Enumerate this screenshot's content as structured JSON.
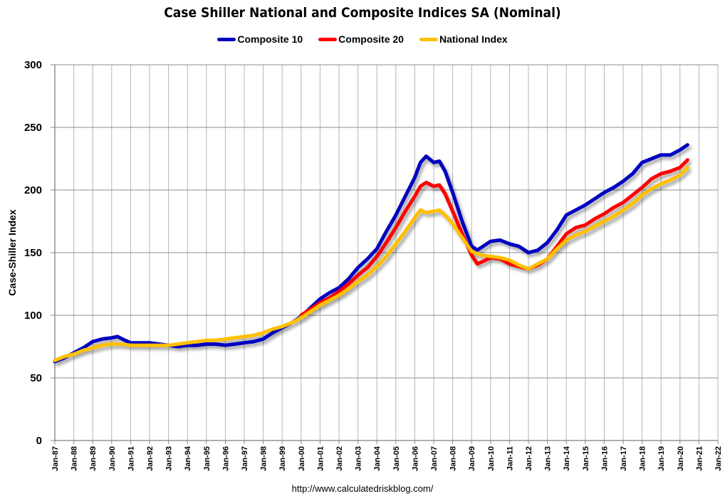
{
  "chart_data": {
    "type": "line",
    "title": "Case Shiller National and Composite Indices SA (Nominal)",
    "xlabel": "",
    "ylabel": "Case-Shiller Index",
    "ylim": [
      0,
      300
    ],
    "yticks": [
      0,
      50,
      100,
      150,
      200,
      250,
      300
    ],
    "xlim": [
      1987,
      2022
    ],
    "xtick_labels": [
      "Jan-87",
      "Jan-88",
      "Jan-89",
      "Jan-90",
      "Jan-91",
      "Jan-92",
      "Jan-93",
      "Jan-94",
      "Jan-95",
      "Jan-96",
      "Jan-97",
      "Jan-98",
      "Jan-99",
      "Jan-00",
      "Jan-01",
      "Jan-02",
      "Jan-03",
      "Jan-04",
      "Jan-05",
      "Jan-06",
      "Jan-07",
      "Jan-08",
      "Jan-09",
      "Jan-10",
      "Jan-11",
      "Jan-12",
      "Jan-13",
      "Jan-14",
      "Jan-15",
      "Jan-16",
      "Jan-17",
      "Jan-18",
      "Jan-19",
      "Jan-20",
      "Jan-21",
      "Jan-22"
    ],
    "grid": true,
    "legend_position": "top-center",
    "series": [
      {
        "name": "Composite 10",
        "color": "#0000C0",
        "x": [
          1987.0,
          1987.5,
          1988.0,
          1988.5,
          1989.0,
          1989.5,
          1990.0,
          1990.3,
          1990.7,
          1991.0,
          1991.5,
          1992.0,
          1992.5,
          1993.0,
          1993.5,
          1994.0,
          1994.5,
          1995.0,
          1995.5,
          1996.0,
          1996.5,
          1997.0,
          1997.5,
          1998.0,
          1998.5,
          1999.0,
          1999.5,
          2000.0,
          2000.5,
          2001.0,
          2001.5,
          2002.0,
          2002.5,
          2003.0,
          2003.5,
          2004.0,
          2004.5,
          2005.0,
          2005.5,
          2006.0,
          2006.3,
          2006.6,
          2007.0,
          2007.3,
          2007.6,
          2008.0,
          2008.5,
          2009.0,
          2009.3,
          2009.6,
          2010.0,
          2010.5,
          2011.0,
          2011.5,
          2012.0,
          2012.5,
          2013.0,
          2013.5,
          2014.0,
          2014.5,
          2015.0,
          2015.5,
          2016.0,
          2016.5,
          2017.0,
          2017.5,
          2018.0,
          2018.5,
          2019.0,
          2019.5,
          2020.0,
          2020.4
        ],
        "values": [
          63,
          66,
          70,
          74,
          79,
          81,
          82,
          83,
          80,
          78,
          78,
          78,
          77,
          76,
          75,
          76,
          76,
          77,
          77,
          76,
          77,
          78,
          79,
          81,
          86,
          90,
          94,
          99,
          106,
          113,
          118,
          122,
          129,
          138,
          145,
          153,
          167,
          180,
          195,
          210,
          222,
          227,
          222,
          223,
          215,
          198,
          175,
          155,
          152,
          155,
          159,
          160,
          157,
          155,
          150,
          152,
          158,
          168,
          180,
          184,
          188,
          193,
          198,
          202,
          207,
          213,
          222,
          225,
          228,
          228,
          232,
          236
        ]
      },
      {
        "name": "Composite 20",
        "color": "#FF0000",
        "x": [
          2000.0,
          2000.5,
          2001.0,
          2001.5,
          2002.0,
          2002.5,
          2003.0,
          2003.5,
          2004.0,
          2004.5,
          2005.0,
          2005.5,
          2006.0,
          2006.3,
          2006.6,
          2007.0,
          2007.3,
          2007.6,
          2008.0,
          2008.5,
          2009.0,
          2009.3,
          2009.6,
          2010.0,
          2010.5,
          2011.0,
          2011.5,
          2012.0,
          2012.5,
          2013.0,
          2013.5,
          2014.0,
          2014.5,
          2015.0,
          2015.5,
          2016.0,
          2016.5,
          2017.0,
          2017.5,
          2018.0,
          2018.5,
          2019.0,
          2019.5,
          2020.0,
          2020.4
        ],
        "values": [
          100,
          105,
          110,
          114,
          119,
          125,
          132,
          138,
          147,
          158,
          170,
          183,
          195,
          203,
          206,
          203,
          204,
          197,
          183,
          165,
          148,
          141,
          143,
          146,
          145,
          141,
          139,
          137,
          140,
          145,
          155,
          165,
          170,
          172,
          177,
          181,
          186,
          190,
          196,
          202,
          209,
          213,
          215,
          218,
          224
        ]
      },
      {
        "name": "National Index",
        "color": "#FFC000",
        "x": [
          1987.0,
          1987.5,
          1988.0,
          1988.5,
          1989.0,
          1989.5,
          1990.0,
          1990.5,
          1991.0,
          1991.5,
          1992.0,
          1992.5,
          1993.0,
          1993.5,
          1994.0,
          1994.5,
          1995.0,
          1995.5,
          1996.0,
          1996.5,
          1997.0,
          1997.5,
          1998.0,
          1998.5,
          1999.0,
          1999.5,
          2000.0,
          2000.5,
          2001.0,
          2001.5,
          2002.0,
          2002.5,
          2003.0,
          2003.5,
          2004.0,
          2004.5,
          2005.0,
          2005.5,
          2006.0,
          2006.3,
          2006.6,
          2007.0,
          2007.3,
          2007.6,
          2008.0,
          2008.5,
          2009.0,
          2009.5,
          2010.0,
          2010.5,
          2011.0,
          2011.5,
          2012.0,
          2012.5,
          2013.0,
          2013.5,
          2014.0,
          2014.5,
          2015.0,
          2015.5,
          2016.0,
          2016.5,
          2017.0,
          2017.5,
          2018.0,
          2018.5,
          2019.0,
          2019.5,
          2020.0,
          2020.4
        ],
        "values": [
          64,
          67,
          69,
          72,
          74,
          76,
          77,
          77,
          76,
          76,
          76,
          76,
          76,
          77,
          78,
          79,
          80,
          80,
          81,
          82,
          83,
          84,
          86,
          89,
          91,
          94,
          98,
          103,
          108,
          112,
          116,
          121,
          127,
          132,
          139,
          147,
          157,
          167,
          178,
          184,
          182,
          183,
          184,
          180,
          173,
          162,
          151,
          148,
          147,
          146,
          144,
          140,
          137,
          141,
          145,
          153,
          160,
          164,
          167,
          171,
          175,
          179,
          184,
          189,
          196,
          201,
          205,
          208,
          212,
          218
        ]
      }
    ],
    "footer": "http://www.calculatedriskblog.com/"
  }
}
